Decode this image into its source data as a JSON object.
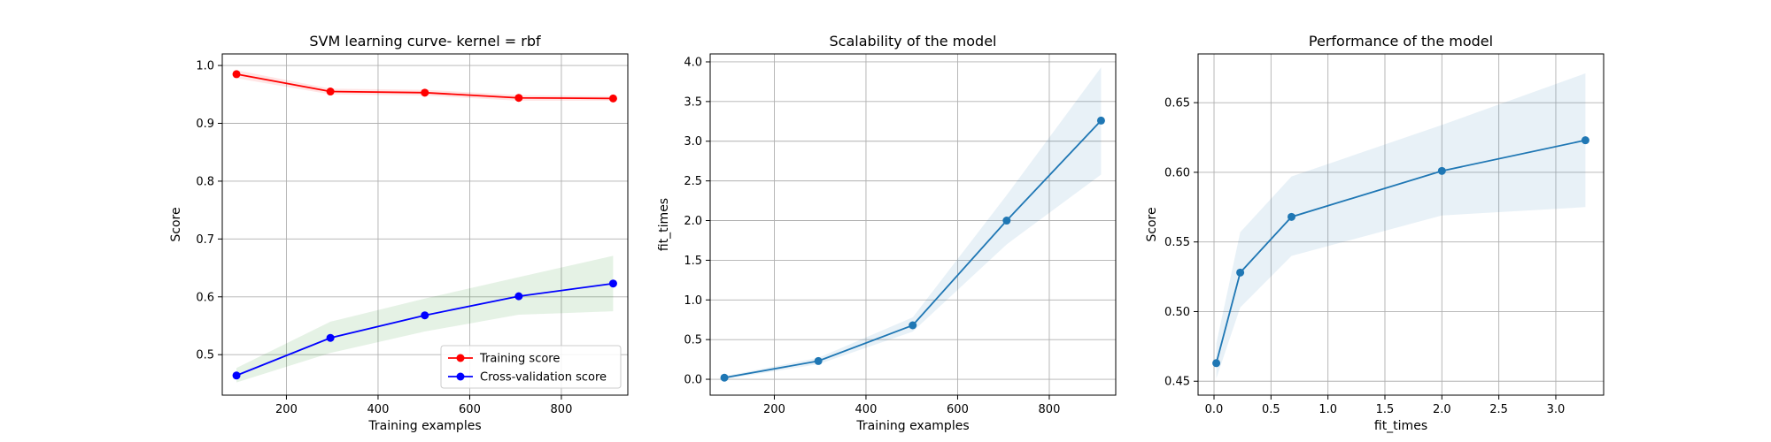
{
  "chart_data": [
    {
      "type": "line",
      "title": "SVM learning curve- kernel = rbf",
      "xlabel": "Training examples",
      "ylabel": "Score",
      "xlim": [
        60,
        945
      ],
      "ylim": [
        0.43,
        1.02
      ],
      "xticks": [
        200,
        400,
        600,
        800
      ],
      "yticks": [
        0.5,
        0.6,
        0.7,
        0.8,
        0.9,
        1.0
      ],
      "grid": true,
      "legend": "lower-right",
      "series": [
        {
          "name": "Training score",
          "color": "#ff0000",
          "band_color": "#ff0000",
          "x": [
            91,
            296,
            502,
            707,
            913
          ],
          "y": [
            0.985,
            0.955,
            0.953,
            0.944,
            0.943
          ],
          "band_lower": [
            0.978,
            0.95,
            0.948,
            0.939,
            0.939
          ],
          "band_upper": [
            0.992,
            0.96,
            0.958,
            0.949,
            0.947
          ]
        },
        {
          "name": "Cross-validation score",
          "color": "#0000ff",
          "band_color": "#008000",
          "x": [
            91,
            296,
            502,
            707,
            913
          ],
          "y": [
            0.464,
            0.529,
            0.568,
            0.601,
            0.623
          ],
          "band_lower": [
            0.452,
            0.503,
            0.54,
            0.569,
            0.575
          ],
          "band_upper": [
            0.477,
            0.557,
            0.597,
            0.634,
            0.671
          ]
        }
      ]
    },
    {
      "type": "line",
      "title": "Scalability of the model",
      "xlabel": "Training examples",
      "ylabel": "fit_times",
      "xlim": [
        60,
        945
      ],
      "ylim": [
        -0.2,
        4.1
      ],
      "xticks": [
        200,
        400,
        600,
        800
      ],
      "yticks": [
        0.0,
        0.5,
        1.0,
        1.5,
        2.0,
        2.5,
        3.0,
        3.5,
        4.0
      ],
      "grid": true,
      "series": [
        {
          "color": "#1f77b4",
          "band_color": "#1f77b4",
          "x": [
            91,
            296,
            502,
            707,
            913
          ],
          "y": [
            0.02,
            0.23,
            0.68,
            2.0,
            3.26
          ],
          "band_lower": [
            0.0,
            0.19,
            0.6,
            1.7,
            2.58
          ],
          "band_upper": [
            0.04,
            0.27,
            0.78,
            2.32,
            3.93
          ]
        }
      ]
    },
    {
      "type": "line",
      "title": "Performance of the model",
      "xlabel": "fit_times",
      "ylabel": "Score",
      "xlim": [
        -0.14,
        3.42
      ],
      "ylim": [
        0.44,
        0.685
      ],
      "xticks": [
        0.0,
        0.5,
        1.0,
        1.5,
        2.0,
        2.5,
        3.0
      ],
      "yticks": [
        0.45,
        0.5,
        0.55,
        0.6,
        0.65
      ],
      "grid": true,
      "series": [
        {
          "color": "#1f77b4",
          "band_color": "#1f77b4",
          "x": [
            0.02,
            0.23,
            0.68,
            2.0,
            3.26
          ],
          "y": [
            0.463,
            0.528,
            0.568,
            0.601,
            0.623
          ],
          "band_lower": [
            0.452,
            0.503,
            0.54,
            0.569,
            0.575
          ],
          "band_upper": [
            0.477,
            0.557,
            0.597,
            0.634,
            0.671
          ]
        }
      ]
    }
  ]
}
